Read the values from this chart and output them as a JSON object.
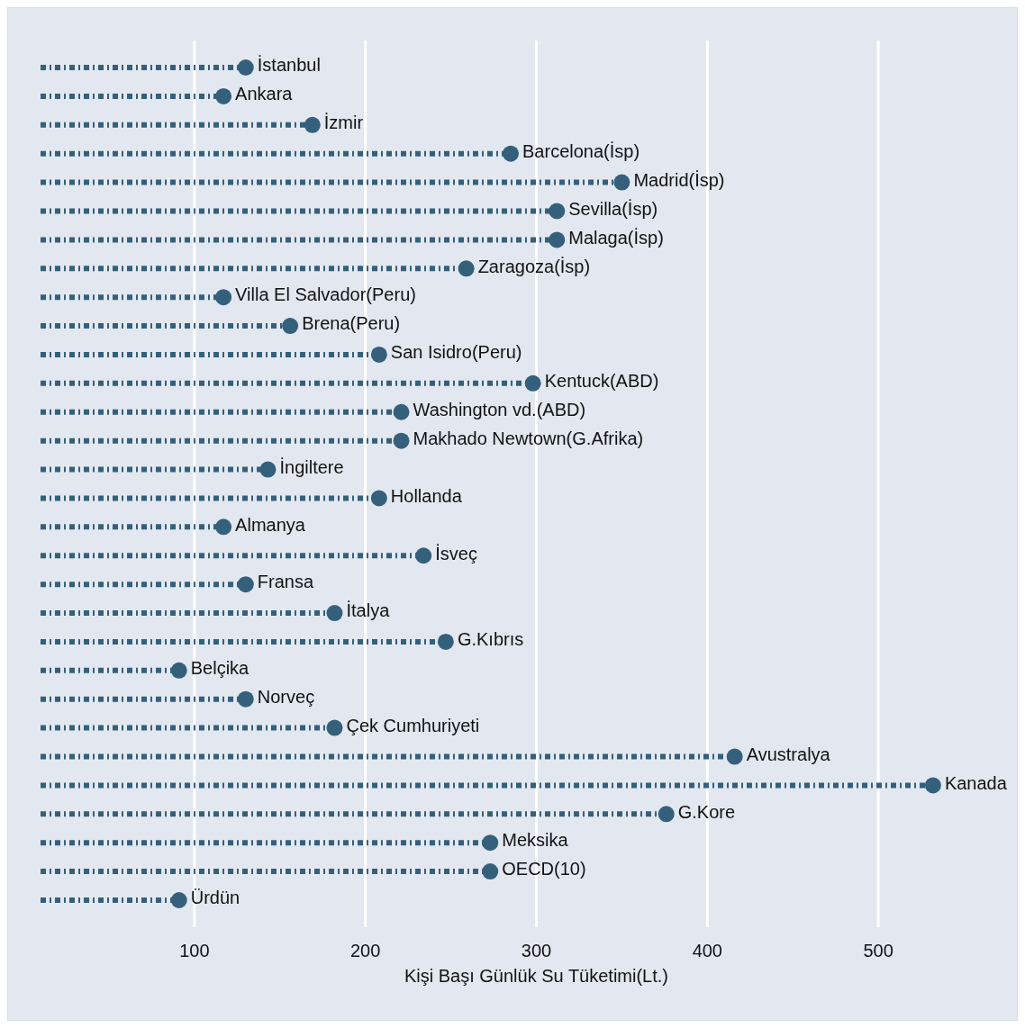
{
  "chart_data": {
    "type": "lollipop",
    "orientation": "horizontal",
    "xlabel": "Kişi Başı Günlük Su Tüketimi(Lt.)",
    "categories": [
      "İstanbul",
      "Ankara",
      "İzmir",
      "Barcelona(İsp)",
      "Madrid(İsp)",
      "Sevilla(İsp)",
      "Malaga(İsp)",
      "Zaragoza(İsp)",
      "Villa El Salvador(Peru)",
      "Brena(Peru)",
      "San Isidro(Peru)",
      "Kentuck(ABD)",
      "Washington vd.(ABD)",
      "Makhado Newtown(G.Afrika)",
      "İngiltere",
      "Hollanda",
      "Almanya",
      "İsveç",
      "Fransa",
      "İtalya",
      "G.Kıbrıs",
      "Belçika",
      "Norveç",
      "Çek Cumhuriyeti",
      "Avustralya",
      "Kanada",
      "G.Kore",
      "Meksika",
      "OECD(10)",
      "Ürdün"
    ],
    "values": [
      130,
      117,
      169,
      285,
      350,
      312,
      312,
      259,
      117,
      156,
      208,
      298,
      221,
      221,
      143,
      208,
      117,
      234,
      130,
      182,
      247,
      91,
      130,
      182,
      416,
      532,
      376,
      273,
      273,
      91
    ],
    "color": "#34607c",
    "xlim": [
      10,
      580
    ],
    "xticks": [
      100,
      200,
      300,
      400,
      500
    ],
    "grid": "x",
    "marker": "circle",
    "line_style": "dashed"
  }
}
